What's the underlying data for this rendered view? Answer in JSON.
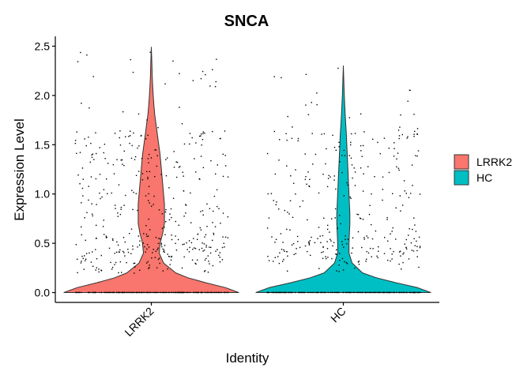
{
  "chart_data": {
    "type": "violin",
    "title": "SNCA",
    "xlabel": "Identity",
    "ylabel": "Expression Level",
    "categories": [
      "LRRK2",
      "HC"
    ],
    "yticks": [
      "0.0",
      "0.5",
      "1.0",
      "1.5",
      "2.0",
      "2.5"
    ],
    "ylim": [
      -0.1,
      2.6
    ],
    "grid": false,
    "legend": {
      "position": "right",
      "entries": [
        {
          "name": "LRRK2",
          "color": "#F8766D"
        },
        {
          "name": "HC",
          "color": "#00BFC4"
        }
      ]
    },
    "series": [
      {
        "name": "LRRK2",
        "color": "#F8766D",
        "max": 2.49,
        "density_profile": [
          [
            0.0,
            1.0
          ],
          [
            0.05,
            0.85
          ],
          [
            0.1,
            0.62
          ],
          [
            0.15,
            0.42
          ],
          [
            0.2,
            0.28
          ],
          [
            0.3,
            0.14
          ],
          [
            0.4,
            0.09
          ],
          [
            0.5,
            0.1
          ],
          [
            0.6,
            0.13
          ],
          [
            0.7,
            0.15
          ],
          [
            0.8,
            0.15
          ],
          [
            0.9,
            0.15
          ],
          [
            1.0,
            0.14
          ],
          [
            1.1,
            0.13
          ],
          [
            1.2,
            0.12
          ],
          [
            1.3,
            0.11
          ],
          [
            1.4,
            0.1
          ],
          [
            1.5,
            0.085
          ],
          [
            1.6,
            0.07
          ],
          [
            1.7,
            0.055
          ],
          [
            1.8,
            0.04
          ],
          [
            1.9,
            0.03
          ],
          [
            2.0,
            0.022
          ],
          [
            2.1,
            0.015
          ],
          [
            2.2,
            0.01
          ],
          [
            2.3,
            0.007
          ],
          [
            2.4,
            0.004
          ],
          [
            2.49,
            0.0
          ]
        ]
      },
      {
        "name": "HC",
        "color": "#00BFC4",
        "max": 2.3,
        "density_profile": [
          [
            0.0,
            1.0
          ],
          [
            0.05,
            0.85
          ],
          [
            0.1,
            0.6
          ],
          [
            0.15,
            0.38
          ],
          [
            0.2,
            0.22
          ],
          [
            0.3,
            0.1
          ],
          [
            0.4,
            0.065
          ],
          [
            0.5,
            0.065
          ],
          [
            0.6,
            0.07
          ],
          [
            0.7,
            0.075
          ],
          [
            0.8,
            0.075
          ],
          [
            0.9,
            0.07
          ],
          [
            1.0,
            0.065
          ],
          [
            1.1,
            0.06
          ],
          [
            1.2,
            0.055
          ],
          [
            1.3,
            0.05
          ],
          [
            1.4,
            0.045
          ],
          [
            1.5,
            0.04
          ],
          [
            1.6,
            0.035
          ],
          [
            1.7,
            0.028
          ],
          [
            1.8,
            0.022
          ],
          [
            1.9,
            0.016
          ],
          [
            2.0,
            0.011
          ],
          [
            2.1,
            0.007
          ],
          [
            2.2,
            0.004
          ],
          [
            2.3,
            0.0
          ]
        ]
      }
    ]
  }
}
